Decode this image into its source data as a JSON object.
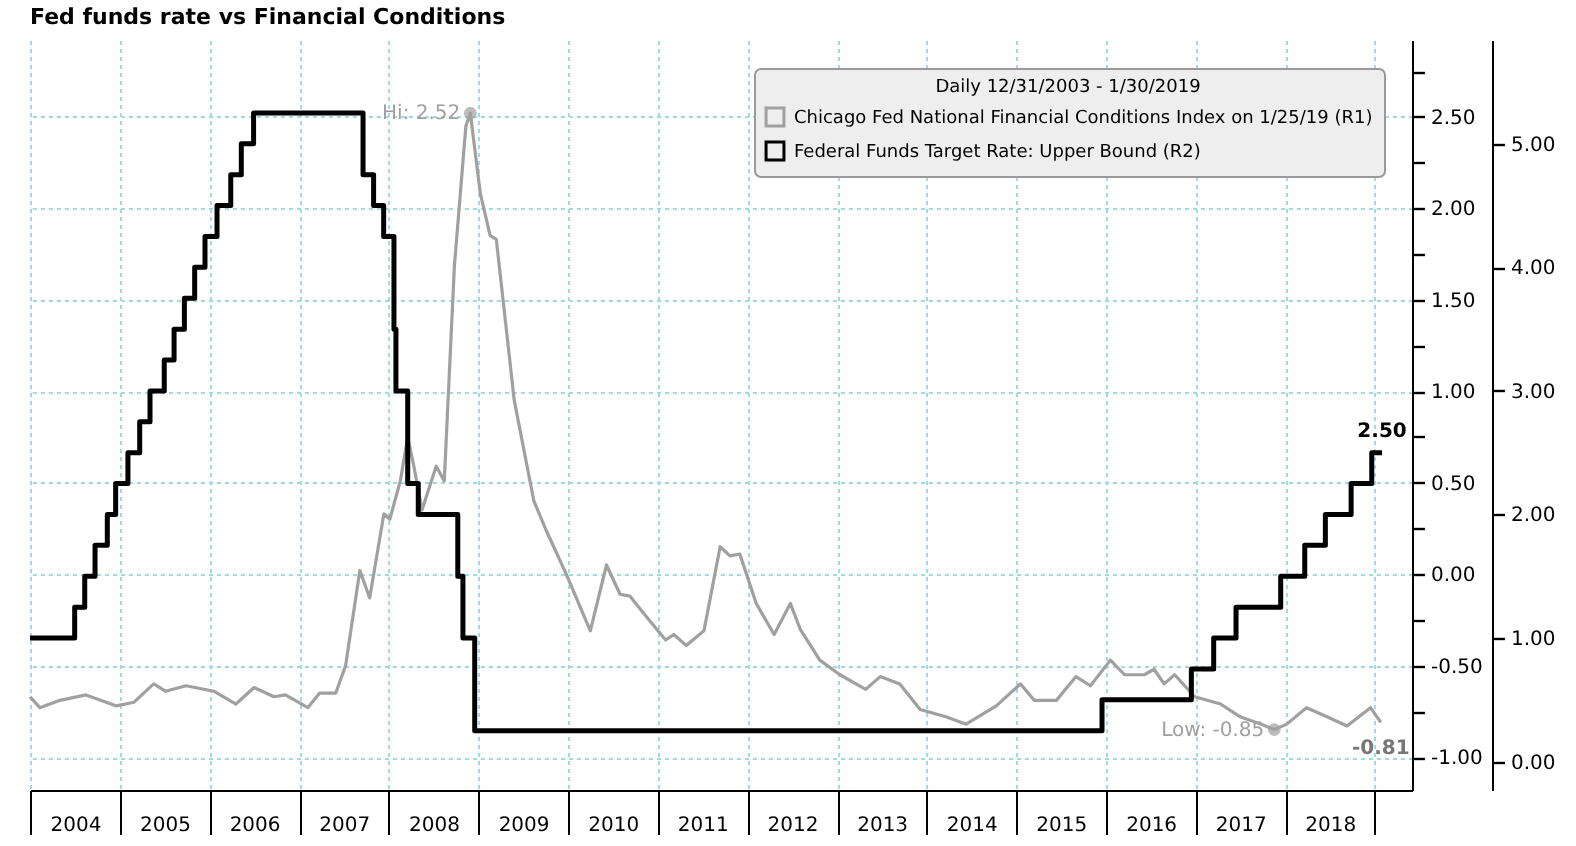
{
  "chart_data": {
    "type": "line",
    "title": "Fed funds rate vs Financial Conditions",
    "legend_title": "Daily 12/31/2003 - 1/30/2019",
    "legend": "top right",
    "grid": true,
    "xlim": [
      "2003-12-31",
      "2019-06-01"
    ],
    "xticks": [
      {
        "value": "2004-01-01",
        "label": null
      },
      {
        "value": "2004-07-01",
        "label": "2004"
      },
      {
        "value": "2005-01-01",
        "label": null
      },
      {
        "value": "2005-07-01",
        "label": "2005"
      },
      {
        "value": "2006-01-01",
        "label": null
      },
      {
        "value": "2006-07-01",
        "label": "2006"
      },
      {
        "value": "2007-01-01",
        "label": null
      },
      {
        "value": "2007-07-01",
        "label": "2007"
      },
      {
        "value": "2008-01-01",
        "label": null
      },
      {
        "value": "2008-07-01",
        "label": "2008"
      },
      {
        "value": "2009-01-01",
        "label": null
      },
      {
        "value": "2009-07-01",
        "label": "2009"
      },
      {
        "value": "2010-01-01",
        "label": null
      },
      {
        "value": "2010-07-01",
        "label": "2010"
      },
      {
        "value": "2011-01-01",
        "label": null
      },
      {
        "value": "2011-07-01",
        "label": "2011"
      },
      {
        "value": "2012-01-01",
        "label": null
      },
      {
        "value": "2012-07-01",
        "label": "2012"
      },
      {
        "value": "2013-01-01",
        "label": null
      },
      {
        "value": "2013-07-01",
        "label": "2013"
      },
      {
        "value": "2014-01-01",
        "label": null
      },
      {
        "value": "2014-07-01",
        "label": "2014"
      },
      {
        "value": "2015-01-01",
        "label": null
      },
      {
        "value": "2015-07-01",
        "label": "2015"
      },
      {
        "value": "2016-01-01",
        "label": null
      },
      {
        "value": "2016-07-01",
        "label": "2016"
      },
      {
        "value": "2017-01-01",
        "label": null
      },
      {
        "value": "2017-07-01",
        "label": "2017"
      },
      {
        "value": "2018-01-01",
        "label": null
      },
      {
        "value": "2018-07-01",
        "label": "2018"
      },
      {
        "value": "2019-01-01",
        "label": null
      }
    ],
    "ylim": [
      -1.18,
      2.92
    ],
    "yticks": [
      {
        "value": -1,
        "label": "-1.00"
      },
      {
        "value": -0.75,
        "label": null
      },
      {
        "value": -0.5,
        "label": "-0.50"
      },
      {
        "value": -0.25,
        "label": null
      },
      {
        "value": 0,
        "label": "0.00"
      },
      {
        "value": 0.25,
        "label": null
      },
      {
        "value": 0.5,
        "label": "0.50"
      },
      {
        "value": 0.75,
        "label": null
      },
      {
        "value": 1,
        "label": "1.00"
      },
      {
        "value": 1.25,
        "label": null
      },
      {
        "value": 1.5,
        "label": "1.50"
      },
      {
        "value": 1.75,
        "label": null
      },
      {
        "value": 2,
        "label": "2.00"
      },
      {
        "value": 2.25,
        "label": null
      },
      {
        "value": 2.5,
        "label": "2.50"
      },
      {
        "value": 2.75,
        "label": null
      }
    ],
    "y2lim": [
      -0.23,
      5.84
    ],
    "y2ticks": [
      {
        "value": 0,
        "label": "0.00"
      },
      {
        "value": 1,
        "label": "1.00"
      },
      {
        "value": 2,
        "label": "2.00"
      },
      {
        "value": 3,
        "label": "3.00"
      },
      {
        "value": 4,
        "label": "4.00"
      },
      {
        "value": 5,
        "label": "5.00"
      }
    ],
    "annotations": [
      {
        "text": "Hi: 2.52",
        "x": "2008-11-28",
        "y": 2.52
      },
      {
        "text": "Low: -0.85",
        "x": "2017-11-17",
        "y": -0.85
      }
    ],
    "series": [
      {
        "name": "Chicago Fed National Financial Conditions Index on 1/25/19 (R1)",
        "color": "#a0a0a0",
        "x": [
          "2003-12-31",
          "2004-02-09",
          "2004-05-01",
          "2004-08-15",
          "2004-12-15",
          "2005-02-27",
          "2005-05-18",
          "2005-07-05",
          "2005-09-27",
          "2006-01-18",
          "2006-04-18",
          "2006-07-01",
          "2006-09-20",
          "2006-11-06",
          "2007-02-05",
          "2007-03-25",
          "2007-05-30",
          "2007-07-09",
          "2007-09-05",
          "2007-10-15",
          "2007-12-12",
          "2008-01-05",
          "2008-02-17",
          "2008-03-18",
          "2008-04-12",
          "2008-05-15",
          "2008-07-12",
          "2008-08-14",
          "2008-09-24",
          "2008-11-10",
          "2008-11-28",
          "2009-01-08",
          "2009-02-17",
          "2009-03-14",
          "2009-05-26",
          "2009-08-14",
          "2009-10-03",
          "2009-12-24",
          "2010-04-01",
          "2010-06-06",
          "2010-07-31",
          "2010-09-09",
          "2010-11-14",
          "2011-02-02",
          "2011-03-07",
          "2011-04-27",
          "2011-07-08",
          "2011-09-12",
          "2011-10-22",
          "2011-12-01",
          "2012-02-06",
          "2012-04-19",
          "2012-06-24",
          "2012-08-03",
          "2012-10-22",
          "2013-01-12",
          "2013-04-27",
          "2013-06-25",
          "2013-09-13",
          "2013-12-05",
          "2014-03-20",
          "2014-06-10",
          "2014-10-11",
          "2015-01-18",
          "2015-03-15",
          "2015-06-13",
          "2015-09-01",
          "2015-10-30",
          "2016-01-19",
          "2016-03-17",
          "2016-06-05",
          "2016-07-15",
          "2016-08-25",
          "2016-10-07",
          "2016-12-28",
          "2017-04-12",
          "2017-07-01",
          "2017-09-24",
          "2017-11-17",
          "2018-01-07",
          "2018-03-28",
          "2018-06-20",
          "2018-09-09",
          "2018-12-14",
          "2019-01-25"
        ],
        "values": [
          -0.67,
          -0.73,
          -0.69,
          -0.66,
          -0.72,
          -0.7,
          -0.6,
          -0.64,
          -0.61,
          -0.64,
          -0.71,
          -0.62,
          -0.67,
          -0.66,
          -0.73,
          -0.65,
          -0.65,
          -0.5,
          0.02,
          -0.13,
          0.33,
          0.3,
          0.51,
          0.75,
          0.59,
          0.35,
          0.59,
          0.51,
          1.68,
          2.45,
          2.52,
          2.08,
          1.85,
          1.83,
          0.95,
          0.4,
          0.24,
          0.0,
          -0.31,
          0.05,
          -0.11,
          -0.12,
          -0.23,
          -0.36,
          -0.33,
          -0.39,
          -0.31,
          0.15,
          0.1,
          0.11,
          -0.16,
          -0.33,
          -0.16,
          -0.3,
          -0.47,
          -0.55,
          -0.63,
          -0.56,
          -0.6,
          -0.74,
          -0.78,
          -0.82,
          -0.72,
          -0.6,
          -0.69,
          -0.69,
          -0.56,
          -0.61,
          -0.47,
          -0.55,
          -0.55,
          -0.52,
          -0.6,
          -0.55,
          -0.67,
          -0.71,
          -0.78,
          -0.82,
          -0.85,
          -0.82,
          -0.73,
          -0.78,
          -0.83,
          -0.73,
          -0.81
        ],
        "value_labels": [
          null,
          null,
          null,
          null,
          null,
          null,
          null,
          null,
          null,
          null,
          null,
          null,
          null,
          null,
          null,
          null,
          null,
          null,
          null,
          null,
          null,
          null,
          null,
          null,
          null,
          null,
          null,
          null,
          null,
          null,
          null,
          null,
          null,
          null,
          null,
          null,
          null,
          null,
          null,
          null,
          null,
          null,
          null,
          null,
          null,
          null,
          null,
          null,
          null,
          null,
          null,
          null,
          null,
          null,
          null,
          null,
          null,
          null,
          null,
          null,
          null,
          null,
          null,
          null,
          null,
          null,
          null,
          null,
          null,
          null,
          null,
          null,
          null,
          null,
          null,
          null,
          null,
          null,
          null,
          null,
          null,
          null,
          null,
          null,
          "-0.81"
        ]
      },
      {
        "name": "Federal Funds Target Rate: Upper Bound (R2)",
        "type": "step",
        "axis": "y2",
        "color": "#000000",
        "x": [
          "2003-12-31",
          "2004-06-30",
          "2004-08-10",
          "2004-09-21",
          "2004-11-10",
          "2004-12-14",
          "2005-02-02",
          "2005-03-22",
          "2005-05-03",
          "2005-06-30",
          "2005-08-09",
          "2005-09-20",
          "2005-11-01",
          "2005-12-13",
          "2006-01-31",
          "2006-03-28",
          "2006-05-10",
          "2006-06-29",
          "2007-09-18",
          "2007-10-31",
          "2007-12-11",
          "2008-01-22",
          "2008-01-30",
          "2008-03-18",
          "2008-04-30",
          "2008-10-08",
          "2008-10-29",
          "2008-12-16",
          "2015-12-16",
          "2016-12-14",
          "2017-03-15",
          "2017-06-14",
          "2017-12-13",
          "2018-03-21",
          "2018-06-13",
          "2018-09-26",
          "2018-12-19",
          "2019-01-30"
        ],
        "values": [
          1.0,
          1.25,
          1.5,
          1.75,
          2.0,
          2.25,
          2.5,
          2.75,
          3.0,
          3.25,
          3.5,
          3.75,
          4.0,
          4.25,
          4.5,
          4.75,
          5.0,
          5.25,
          4.75,
          4.5,
          4.25,
          3.5,
          3.0,
          2.25,
          2.0,
          1.5,
          1.0,
          0.25,
          0.5,
          0.75,
          1.0,
          1.25,
          1.5,
          1.75,
          2.0,
          2.25,
          2.5,
          2.5
        ],
        "value_labels": [
          null,
          null,
          null,
          null,
          null,
          null,
          null,
          null,
          null,
          null,
          null,
          null,
          null,
          null,
          null,
          null,
          null,
          null,
          null,
          null,
          null,
          null,
          null,
          null,
          null,
          null,
          null,
          null,
          null,
          null,
          null,
          null,
          null,
          null,
          null,
          null,
          null,
          "2.50"
        ]
      }
    ]
  }
}
